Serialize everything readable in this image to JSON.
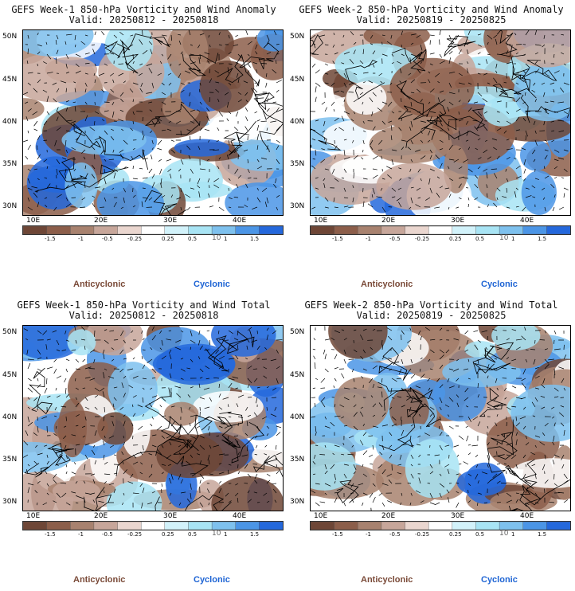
{
  "panels": [
    {
      "title": "GEFS Week-1 850-hPa Vorticity and Wind Anomaly",
      "valid": "Valid: 20250812 - 20250818"
    },
    {
      "title": "GEFS Week-2 850-hPa Vorticity and Wind Anomaly",
      "valid": "Valid: 20250819 - 20250825"
    },
    {
      "title": "GEFS Week-1 850-hPa Vorticity and Wind Total",
      "valid": "Valid: 20250812 - 20250818"
    },
    {
      "title": "GEFS Week-2 850-hPa Vorticity and Wind Total",
      "valid": "Valid: 20250819 - 20250825"
    }
  ],
  "lat_labels": [
    "50N",
    "45N",
    "40N",
    "35N",
    "30N"
  ],
  "lon_labels": [
    "10E",
    "20E",
    "30E",
    "40E"
  ],
  "colorbar": {
    "labels": [
      "-1.5",
      "-1",
      "-0.5",
      "-0.25",
      "0.25",
      "0.5",
      "1",
      "1.5"
    ],
    "scale_label": "10",
    "colors": [
      "#6e4636",
      "#8c5e4a",
      "#a8826f",
      "#c7a69a",
      "#ead6cf",
      "#ffffff",
      "#d2f2fa",
      "#a8e4f4",
      "#7ec1ee",
      "#4b95e6",
      "#2468dc"
    ]
  },
  "legend": {
    "anticyclonic": "Anticyclonic",
    "cyclonic": "Cyclonic"
  },
  "colors": {
    "anticyclonic": "#7a4a38",
    "cyclonic": "#1e64d4",
    "brown": "#7d5240",
    "blue": "#2a73df"
  }
}
